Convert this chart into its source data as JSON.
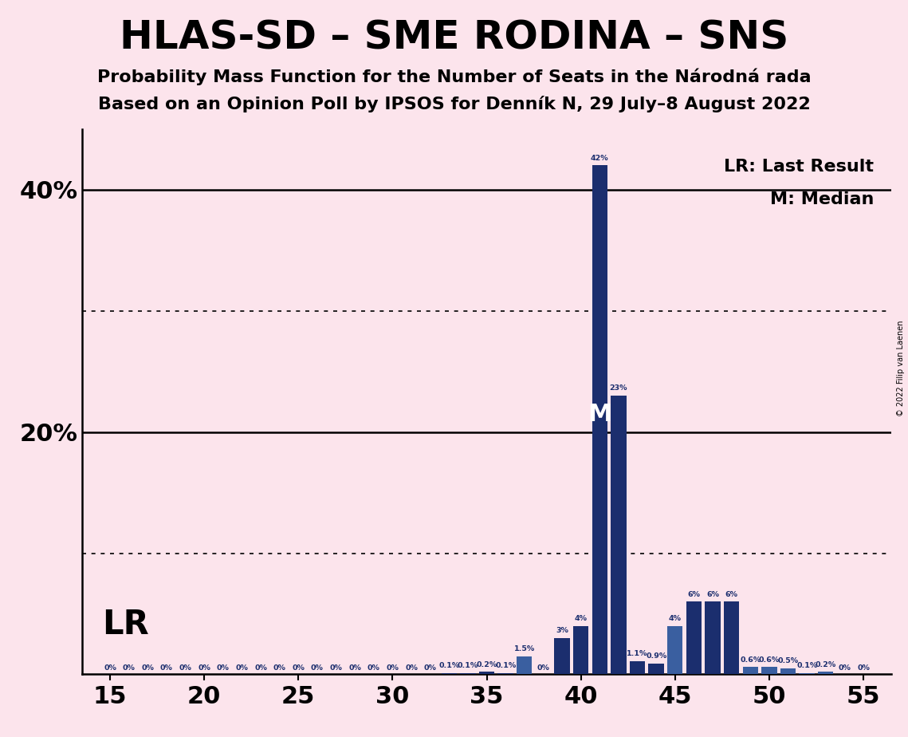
{
  "title": "HLAS-SD – SME RODINA – SNS",
  "subtitle1": "Probability Mass Function for the Number of Seats in the Národná rada",
  "subtitle2": "Based on an Opinion Poll by IPSOS for Denník N, 29 July–8 August 2022",
  "copyright": "© 2022 Filip van Laenen",
  "background_color": "#fce4ec",
  "bar_color_main": "#1b2e6e",
  "bar_color_light": "#3a5fa0",
  "lr_label": "LR",
  "median_seat": 41,
  "legend_lr": "LR: Last Result",
  "legend_m": "M: Median",
  "seat_data": {
    "15": 0.0,
    "16": 0.0,
    "17": 0.0,
    "18": 0.0,
    "19": 0.0,
    "20": 0.0,
    "21": 0.0,
    "22": 0.0,
    "23": 0.0,
    "24": 0.0,
    "25": 0.0,
    "26": 0.0,
    "27": 0.0,
    "28": 0.0,
    "29": 0.0,
    "30": 0.0,
    "31": 0.0,
    "32": 0.0,
    "33": 0.1,
    "34": 0.1,
    "35": 0.2,
    "36": 0.1,
    "37": 1.5,
    "38": 0.0,
    "39": 3.0,
    "40": 4.0,
    "41": 42.0,
    "42": 23.0,
    "43": 1.1,
    "44": 0.9,
    "45": 4.0,
    "46": 6.0,
    "47": 6.0,
    "48": 6.0,
    "49": 0.6,
    "50": 0.6,
    "51": 0.5,
    "52": 0.1,
    "53": 0.2,
    "54": 0.0,
    "55": 0.0
  },
  "seat_labels": {
    "15": "0%",
    "16": "0%",
    "17": "0%",
    "18": "0%",
    "19": "0%",
    "20": "0%",
    "21": "0%",
    "22": "0%",
    "23": "0%",
    "24": "0%",
    "25": "0%",
    "26": "0%",
    "27": "0%",
    "28": "0%",
    "29": "0%",
    "30": "0%",
    "31": "0%",
    "32": "0%",
    "33": "0.1%",
    "34": "0.1%",
    "35": "0.2%",
    "36": "0.1%",
    "37": "1.5%",
    "38": "0%",
    "39": "3%",
    "40": "4%",
    "41": "42%",
    "42": "23%",
    "43": "1.1%",
    "44": "0.9%",
    "45": "4%",
    "46": "6%",
    "47": "6%",
    "48": "6%",
    "49": "0.6%",
    "50": "0.6%",
    "51": "0.5%",
    "52": "0.1%",
    "53": "0.2%",
    "54": "0%",
    "55": "0%"
  },
  "light_color_seats": [
    37,
    45,
    49,
    50,
    51,
    52,
    53
  ],
  "ylim_max": 45,
  "xticks": [
    15,
    20,
    25,
    30,
    35,
    40,
    45,
    50,
    55
  ],
  "solid_hlines": [
    20,
    40
  ],
  "dotted_hlines": [
    10,
    30
  ],
  "tick_fontsize": 22,
  "label_fontsize": 6.8,
  "title_fontsize": 36,
  "subtitle_fontsize": 16,
  "legend_fontsize": 16,
  "lr_fontsize": 30,
  "m_fontsize": 22
}
